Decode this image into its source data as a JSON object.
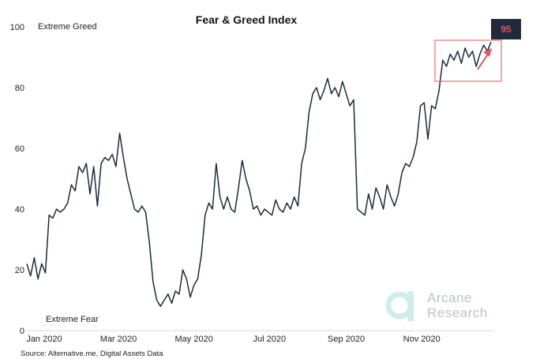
{
  "chart_data": {
    "type": "line",
    "title": "Fear & Greed Index",
    "xlabel": "",
    "ylabel": "",
    "ylim": [
      0,
      100
    ],
    "yticks": [
      0,
      20,
      40,
      60,
      80,
      100
    ],
    "xticks": [
      "Jan 2020",
      "Mar 2020",
      "May 2020",
      "Jul 2020",
      "Sep 2020",
      "Nov 2020"
    ],
    "xtick_day_index": [
      14,
      74,
      135,
      196,
      258,
      319
    ],
    "top_annotation": "Extreme Greed",
    "bottom_annotation": "Extreme Fear",
    "latest_value": "95",
    "source": "Source: Alternative.me, Digital Assets Data",
    "watermark": {
      "line1": "Arcane",
      "line2": "Research"
    },
    "colors": {
      "line": "#1f2a3c",
      "highlight": "#e8505b",
      "watermark": "#b9c2c6"
    },
    "keypoints": [
      [
        0,
        22
      ],
      [
        3,
        18
      ],
      [
        6,
        24
      ],
      [
        9,
        17
      ],
      [
        12,
        22
      ],
      [
        15,
        19
      ],
      [
        18,
        38
      ],
      [
        21,
        37
      ],
      [
        24,
        40
      ],
      [
        27,
        39
      ],
      [
        30,
        40
      ],
      [
        33,
        42
      ],
      [
        36,
        48
      ],
      [
        39,
        46
      ],
      [
        42,
        54
      ],
      [
        45,
        52
      ],
      [
        48,
        55
      ],
      [
        51,
        45
      ],
      [
        54,
        54
      ],
      [
        57,
        41
      ],
      [
        60,
        55
      ],
      [
        63,
        57
      ],
      [
        66,
        56
      ],
      [
        69,
        58
      ],
      [
        72,
        54
      ],
      [
        75,
        65
      ],
      [
        78,
        57
      ],
      [
        81,
        50
      ],
      [
        84,
        45
      ],
      [
        87,
        40
      ],
      [
        90,
        39
      ],
      [
        93,
        41
      ],
      [
        96,
        39
      ],
      [
        99,
        29
      ],
      [
        102,
        16
      ],
      [
        105,
        10
      ],
      [
        108,
        8
      ],
      [
        111,
        10
      ],
      [
        114,
        12
      ],
      [
        117,
        9
      ],
      [
        120,
        13
      ],
      [
        123,
        12
      ],
      [
        126,
        20
      ],
      [
        129,
        17
      ],
      [
        132,
        11
      ],
      [
        135,
        15
      ],
      [
        138,
        17
      ],
      [
        141,
        25
      ],
      [
        144,
        38
      ],
      [
        147,
        42
      ],
      [
        150,
        40
      ],
      [
        153,
        55
      ],
      [
        156,
        44
      ],
      [
        159,
        40
      ],
      [
        162,
        44
      ],
      [
        165,
        40
      ],
      [
        168,
        39
      ],
      [
        171,
        47
      ],
      [
        174,
        56
      ],
      [
        177,
        50
      ],
      [
        180,
        46
      ],
      [
        183,
        40
      ],
      [
        186,
        41
      ],
      [
        189,
        38
      ],
      [
        192,
        40
      ],
      [
        195,
        39
      ],
      [
        198,
        38
      ],
      [
        201,
        43
      ],
      [
        204,
        40
      ],
      [
        207,
        39
      ],
      [
        210,
        42
      ],
      [
        213,
        40
      ],
      [
        216,
        44
      ],
      [
        219,
        41
      ],
      [
        222,
        55
      ],
      [
        225,
        60
      ],
      [
        228,
        72
      ],
      [
        231,
        78
      ],
      [
        234,
        80
      ],
      [
        237,
        76
      ],
      [
        240,
        79
      ],
      [
        243,
        83
      ],
      [
        246,
        78
      ],
      [
        249,
        80
      ],
      [
        252,
        77
      ],
      [
        255,
        82
      ],
      [
        258,
        78
      ],
      [
        261,
        74
      ],
      [
        264,
        76
      ],
      [
        267,
        40
      ],
      [
        270,
        39
      ],
      [
        273,
        38
      ],
      [
        276,
        45
      ],
      [
        279,
        40
      ],
      [
        282,
        47
      ],
      [
        285,
        44
      ],
      [
        288,
        40
      ],
      [
        291,
        48
      ],
      [
        294,
        44
      ],
      [
        297,
        41
      ],
      [
        300,
        45
      ],
      [
        303,
        52
      ],
      [
        306,
        55
      ],
      [
        309,
        54
      ],
      [
        312,
        57
      ],
      [
        315,
        62
      ],
      [
        318,
        74
      ],
      [
        321,
        75
      ],
      [
        324,
        63
      ],
      [
        327,
        74
      ],
      [
        330,
        73
      ],
      [
        333,
        79
      ],
      [
        336,
        89
      ],
      [
        339,
        87
      ],
      [
        342,
        91
      ],
      [
        345,
        89
      ],
      [
        348,
        92
      ],
      [
        351,
        88
      ],
      [
        354,
        93
      ],
      [
        357,
        90
      ],
      [
        360,
        92
      ],
      [
        363,
        87
      ],
      [
        366,
        91
      ],
      [
        369,
        94
      ],
      [
        372,
        92
      ],
      [
        375,
        95
      ]
    ]
  }
}
